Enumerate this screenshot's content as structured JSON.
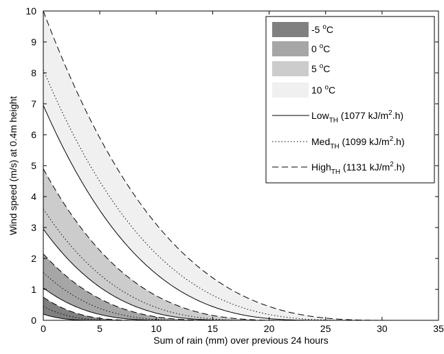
{
  "chart_data": {
    "type": "area",
    "title": "",
    "xlabel": "Sum of rain (mm) over previous 24 hours",
    "ylabel": "Wind speed (m/s) at 0.4m height",
    "xlim": [
      0,
      35
    ],
    "ylim": [
      0,
      10
    ],
    "xticks": [
      "0",
      "5",
      "10",
      "15",
      "20",
      "25",
      "30",
      "35"
    ],
    "yticks": [
      "0",
      "1",
      "2",
      "3",
      "4",
      "5",
      "6",
      "7",
      "8",
      "9",
      "10"
    ],
    "grid": false,
    "legend_position": "top-right",
    "model": "y = A * (1 - x / x0)^3",
    "bands": [
      {
        "label": "-5",
        "unit": "C",
        "color": "#808080",
        "low": {
          "A": 0.2,
          "x0": 5
        },
        "high": {
          "A": 0.75,
          "x0": 9
        }
      },
      {
        "label": "0",
        "unit": "C",
        "color": "#a6a6a6",
        "low": {
          "A": 1.05,
          "x0": 11.5
        },
        "high": {
          "A": 2.15,
          "x0": 16
        }
      },
      {
        "label": "5",
        "unit": "C",
        "color": "#cccccc",
        "low": {
          "A": 2.95,
          "x0": 17.5
        },
        "high": {
          "A": 4.9,
          "x0": 22
        }
      },
      {
        "label": "10",
        "unit": "C",
        "color": "#f0f0f0",
        "low": {
          "A": 6.95,
          "x0": 25
        },
        "high": {
          "A": 10.0,
          "x0": 31
        }
      }
    ],
    "series": [
      {
        "name": "Low",
        "subscript": "TH",
        "value": "(1077 kJ/m",
        "sup": "2",
        "value_end": ".h)",
        "dash": "solid",
        "curves": [
          {
            "A": 0.2,
            "x0": 5
          },
          {
            "A": 1.05,
            "x0": 11.5
          },
          {
            "A": 2.95,
            "x0": 17.5
          },
          {
            "A": 6.95,
            "x0": 25
          }
        ]
      },
      {
        "name": "Med",
        "subscript": "TH",
        "value": "(1099 kJ/m",
        "sup": "2",
        "value_end": ".h)",
        "dash": "dotted",
        "curves": [
          {
            "A": 0.45,
            "x0": 7
          },
          {
            "A": 1.55,
            "x0": 13.5
          },
          {
            "A": 3.6,
            "x0": 19.5
          },
          {
            "A": 8.1,
            "x0": 28
          }
        ]
      },
      {
        "name": "High",
        "subscript": "TH",
        "value": "(1131 kJ/m",
        "sup": "2",
        "value_end": ".h)",
        "dash": "dashed",
        "curves": [
          {
            "A": 0.75,
            "x0": 9
          },
          {
            "A": 2.15,
            "x0": 16
          },
          {
            "A": 4.9,
            "x0": 22
          },
          {
            "A": 10.0,
            "x0": 31
          }
        ]
      }
    ]
  }
}
